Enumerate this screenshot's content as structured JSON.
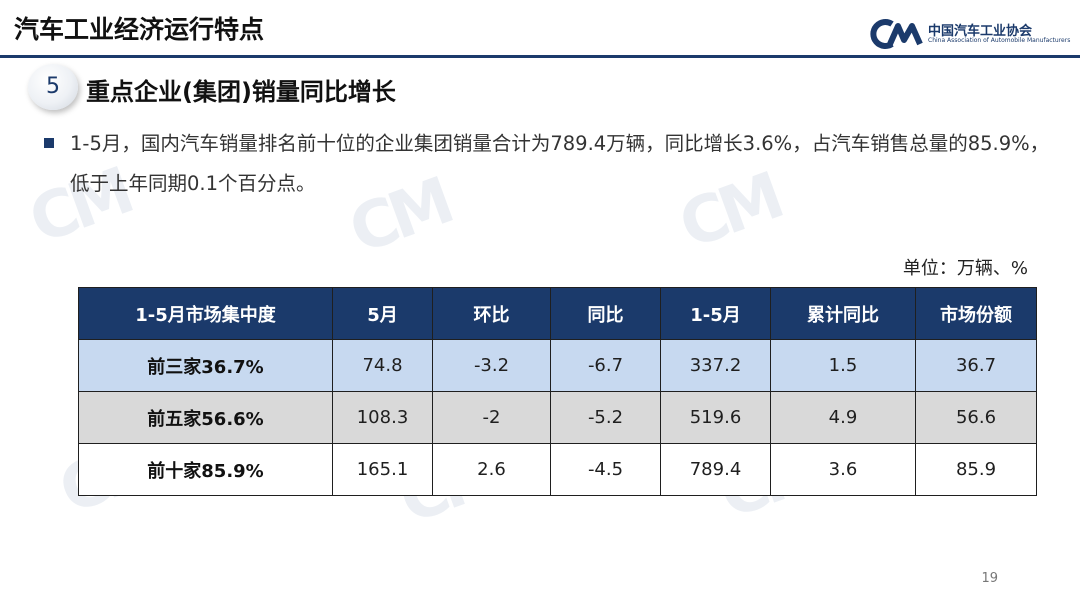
{
  "header": {
    "title": "汽车工业经济运行特点",
    "logo_cn": "中国汽车工业协会",
    "logo_en": "China Association of Automobile Manufacturers"
  },
  "section": {
    "number": "5",
    "title": "重点企业(集团)销量同比增长"
  },
  "body_text": "1-5月，国内汽车销量排名前十位的企业集团销量合计为789.4万辆，同比增长3.6%，占汽车销售总量的85.9%，低于上年同期0.1个百分点。",
  "unit": "单位：万辆、%",
  "table": {
    "headers": [
      "1-5月市场集中度",
      "5月",
      "环比",
      "同比",
      "1-5月",
      "累计同比",
      "市场份额"
    ],
    "rows": [
      [
        "前三家36.7%",
        "74.8",
        "-3.2",
        "-6.7",
        "337.2",
        "1.5",
        "36.7"
      ],
      [
        "前五家56.6%",
        "108.3",
        "-2",
        "-5.2",
        "519.6",
        "4.9",
        "56.6"
      ],
      [
        "前十家85.9%",
        "165.1",
        "2.6",
        "-4.5",
        "789.4",
        "3.6",
        "85.9"
      ]
    ]
  },
  "page_number": "19",
  "colors": {
    "brand": "#1b3a6b",
    "row1_bg": "#c7d9f0",
    "row2_bg": "#d9d9d9"
  }
}
